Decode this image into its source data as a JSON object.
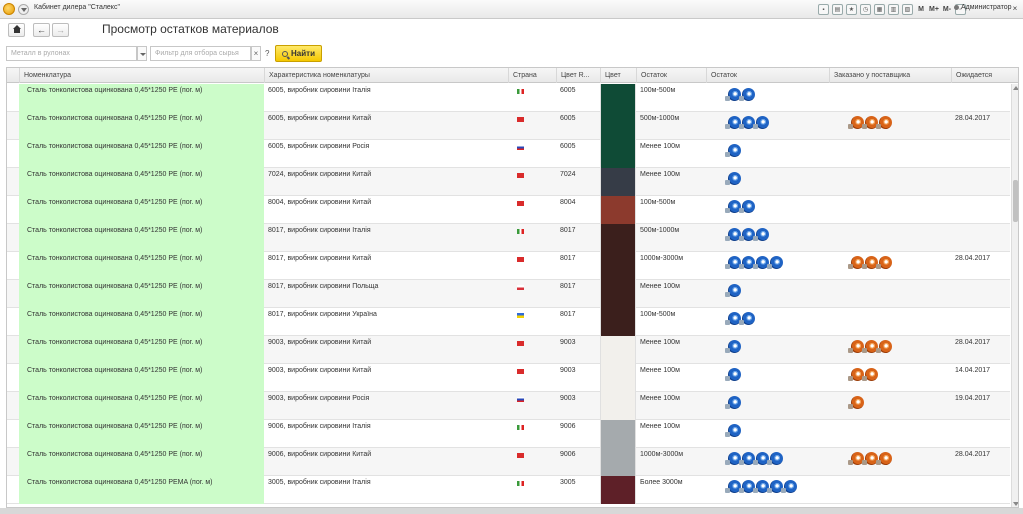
{
  "app": {
    "title": "Кабинет дилера \"Сталекс\"",
    "user": "Администратор",
    "tools": [
      "M",
      "M+",
      "M-"
    ]
  },
  "page_title": "Просмотр остатков материалов",
  "filters": {
    "category_placeholder": "Металл в рулонах",
    "raw_filter_placeholder": "Фильтр для отбора сырья",
    "clear_label": "×",
    "help_label": "?",
    "find_label": "Найти"
  },
  "columns": {
    "nomenclature": "Номенклатура",
    "characteristic": "Характеристика номенклатуры",
    "country": "Страна",
    "color_ral": "Цвет R...",
    "color": "Цвет",
    "stock": "Остаток",
    "stock_icons": "Остаток",
    "ordered": "Заказано у поставщика",
    "expected": "Ожидается"
  },
  "rows": [
    {
      "nom": "Сталь тонколистова оцинкована 0,45*1250 PE (пог. м)",
      "char": "6005, виробник сировини Італія",
      "flag": "it",
      "ral": "6005",
      "color": "#0f4b36",
      "stock": "100м-500м",
      "stock_coils": 2,
      "order_coils": 0,
      "expected": ""
    },
    {
      "nom": "Сталь тонколистова оцинкована 0,45*1250 PE (пог. м)",
      "char": "6005, виробник сировини Китай",
      "flag": "cn",
      "ral": "6005",
      "color": "#0f4b36",
      "stock": "500м-1000м",
      "stock_coils": 3,
      "order_coils": 3,
      "expected": "28.04.2017"
    },
    {
      "nom": "Сталь тонколистова оцинкована 0,45*1250 PE (пог. м)",
      "char": "6005, виробник сировини Росія",
      "flag": "ru",
      "ral": "6005",
      "color": "#0f4b36",
      "stock": "Менее 100м",
      "stock_coils": 1,
      "order_coils": 0,
      "expected": ""
    },
    {
      "nom": "Сталь тонколистова оцинкована 0,45*1250 PE (пог. м)",
      "char": "7024, виробник сировини Китай",
      "flag": "cn",
      "ral": "7024",
      "color": "#363c47",
      "stock": "Менее 100м",
      "stock_coils": 1,
      "order_coils": 0,
      "expected": ""
    },
    {
      "nom": "Сталь тонколистова оцинкована 0,45*1250 PE (пог. м)",
      "char": "8004, виробник сировини Китай",
      "flag": "cn",
      "ral": "8004",
      "color": "#8c3a2d",
      "stock": "100м-500м",
      "stock_coils": 2,
      "order_coils": 0,
      "expected": ""
    },
    {
      "nom": "Сталь тонколистова оцинкована 0,45*1250 PE (пог. м)",
      "char": "8017, виробник сировини Італія",
      "flag": "it",
      "ral": "8017",
      "color": "#3b1f1c",
      "stock": "500м-1000м",
      "stock_coils": 3,
      "order_coils": 0,
      "expected": ""
    },
    {
      "nom": "Сталь тонколистова оцинкована 0,45*1250 PE (пог. м)",
      "char": "8017, виробник сировини Китай",
      "flag": "cn",
      "ral": "8017",
      "color": "#3b1f1c",
      "stock": "1000м-3000м",
      "stock_coils": 4,
      "order_coils": 3,
      "expected": "28.04.2017"
    },
    {
      "nom": "Сталь тонколистова оцинкована 0,45*1250 PE (пог. м)",
      "char": "8017, виробник сировини Польща",
      "flag": "pl",
      "ral": "8017",
      "color": "#3b1f1c",
      "stock": "Менее 100м",
      "stock_coils": 1,
      "order_coils": 0,
      "expected": ""
    },
    {
      "nom": "Сталь тонколистова оцинкована 0,45*1250 PE (пог. м)",
      "char": "8017, виробник сировини Україна",
      "flag": "ua",
      "ral": "8017",
      "color": "#3b1f1c",
      "stock": "100м-500м",
      "stock_coils": 2,
      "order_coils": 0,
      "expected": ""
    },
    {
      "nom": "Сталь тонколистова оцинкована 0,45*1250 PE (пог. м)",
      "char": "9003, виробник сировини Китай",
      "flag": "cn",
      "ral": "9003",
      "color": "#f2f0ec",
      "stock": "Менее 100м",
      "stock_coils": 1,
      "order_coils": 3,
      "expected": "28.04.2017"
    },
    {
      "nom": "Сталь тонколистова оцинкована 0,45*1250 PE (пог. м)",
      "char": "9003, виробник сировини Китай",
      "flag": "cn",
      "ral": "9003",
      "color": "#f2f0ec",
      "stock": "Менее 100м",
      "stock_coils": 1,
      "order_coils": 2,
      "expected": "14.04.2017"
    },
    {
      "nom": "Сталь тонколистова оцинкована 0,45*1250 PE (пог. м)",
      "char": "9003, виробник сировини Росія",
      "flag": "ru",
      "ral": "9003",
      "color": "#f2f0ec",
      "stock": "Менее 100м",
      "stock_coils": 1,
      "order_coils": 1,
      "expected": "19.04.2017"
    },
    {
      "nom": "Сталь тонколистова оцинкована 0,45*1250 PE (пог. м)",
      "char": "9006, виробник сировини Італія",
      "flag": "it",
      "ral": "9006",
      "color": "#a5aaad",
      "stock": "Менее 100м",
      "stock_coils": 1,
      "order_coils": 0,
      "expected": ""
    },
    {
      "nom": "Сталь тонколистова оцинкована 0,45*1250 PE (пог. м)",
      "char": "9006, виробник сировини Китай",
      "flag": "cn",
      "ral": "9006",
      "color": "#a5aaad",
      "stock": "1000м-3000м",
      "stock_coils": 4,
      "order_coils": 3,
      "expected": "28.04.2017"
    },
    {
      "nom": "Сталь тонколистова оцинкована 0,45*1250 PEMA (пог. м)",
      "char": "3005, виробник сировини Італія",
      "flag": "it",
      "ral": "3005",
      "color": "#5e2028",
      "stock": "Более 3000м",
      "stock_coils": 5,
      "order_coils": 0,
      "expected": ""
    }
  ]
}
